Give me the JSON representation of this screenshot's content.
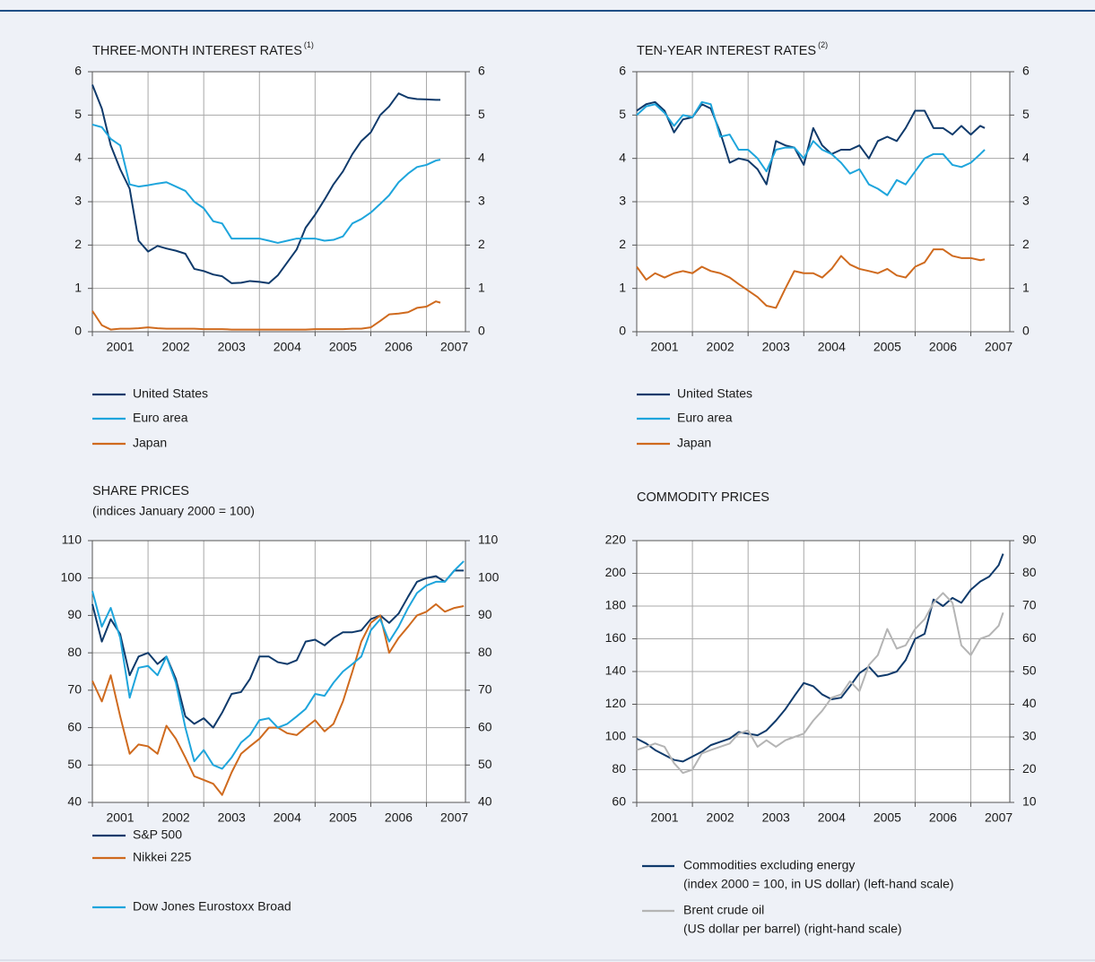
{
  "chart_data": [
    {
      "type": "line",
      "title": "THREE-MONTH INTEREST RATES",
      "title_note": "(1)",
      "x": [
        2001,
        2001.17,
        2001.33,
        2001.5,
        2001.67,
        2001.83,
        2002,
        2002.17,
        2002.33,
        2002.5,
        2002.67,
        2002.83,
        2003,
        2003.17,
        2003.33,
        2003.5,
        2003.67,
        2003.83,
        2004,
        2004.17,
        2004.33,
        2004.5,
        2004.67,
        2004.83,
        2005,
        2005.17,
        2005.33,
        2005.5,
        2005.67,
        2005.83,
        2006,
        2006.17,
        2006.33,
        2006.5,
        2006.67,
        2006.83,
        2007,
        2007.17,
        2007.25
      ],
      "xlim": [
        2001,
        2007.7
      ],
      "xticks": [
        2001,
        2002,
        2003,
        2004,
        2005,
        2006,
        2007
      ],
      "ylim": [
        0,
        6
      ],
      "yticks": [
        0,
        1,
        2,
        3,
        4,
        5,
        6
      ],
      "y2lim": [
        0,
        6
      ],
      "y2ticks": [
        0,
        1,
        2,
        3,
        4,
        5,
        6
      ],
      "grid": true,
      "series": [
        {
          "name": "United States",
          "color": "#0f3a6b",
          "values": [
            5.7,
            5.15,
            4.3,
            3.75,
            3.3,
            2.1,
            1.85,
            1.98,
            1.92,
            1.87,
            1.8,
            1.45,
            1.4,
            1.32,
            1.28,
            1.12,
            1.13,
            1.17,
            1.15,
            1.12,
            1.3,
            1.6,
            1.9,
            2.4,
            2.7,
            3.05,
            3.4,
            3.7,
            4.1,
            4.4,
            4.6,
            5.0,
            5.2,
            5.5,
            5.4,
            5.37,
            5.36,
            5.35,
            5.35
          ]
        },
        {
          "name": "Euro area",
          "color": "#1ea5dc",
          "values": [
            4.78,
            4.72,
            4.45,
            4.3,
            3.4,
            3.35,
            3.38,
            3.42,
            3.45,
            3.35,
            3.25,
            3.0,
            2.85,
            2.55,
            2.5,
            2.15,
            2.15,
            2.15,
            2.15,
            2.1,
            2.05,
            2.1,
            2.15,
            2.15,
            2.15,
            2.1,
            2.12,
            2.2,
            2.5,
            2.6,
            2.75,
            2.95,
            3.15,
            3.45,
            3.65,
            3.8,
            3.85,
            3.95,
            3.97
          ]
        },
        {
          "name": "Japan",
          "color": "#cf6a1e",
          "values": [
            0.48,
            0.15,
            0.05,
            0.07,
            0.07,
            0.08,
            0.1,
            0.08,
            0.07,
            0.07,
            0.07,
            0.07,
            0.06,
            0.06,
            0.06,
            0.05,
            0.05,
            0.05,
            0.05,
            0.05,
            0.05,
            0.05,
            0.05,
            0.05,
            0.06,
            0.06,
            0.06,
            0.06,
            0.07,
            0.07,
            0.1,
            0.25,
            0.4,
            0.42,
            0.45,
            0.55,
            0.58,
            0.7,
            0.67
          ]
        }
      ]
    },
    {
      "type": "line",
      "title": "TEN-YEAR INTEREST RATES",
      "title_note": "(2)",
      "x": [
        2001,
        2001.17,
        2001.33,
        2001.5,
        2001.67,
        2001.83,
        2002,
        2002.17,
        2002.33,
        2002.5,
        2002.67,
        2002.83,
        2003,
        2003.17,
        2003.33,
        2003.5,
        2003.67,
        2003.83,
        2004,
        2004.17,
        2004.33,
        2004.5,
        2004.67,
        2004.83,
        2005,
        2005.17,
        2005.33,
        2005.5,
        2005.67,
        2005.83,
        2006,
        2006.17,
        2006.33,
        2006.5,
        2006.67,
        2006.83,
        2007,
        2007.17,
        2007.25
      ],
      "xlim": [
        2001,
        2007.7
      ],
      "xticks": [
        2001,
        2002,
        2003,
        2004,
        2005,
        2006,
        2007
      ],
      "ylim": [
        0,
        6
      ],
      "yticks": [
        0,
        1,
        2,
        3,
        4,
        5,
        6
      ],
      "y2lim": [
        0,
        6
      ],
      "y2ticks": [
        0,
        1,
        2,
        3,
        4,
        5,
        6
      ],
      "grid": true,
      "series": [
        {
          "name": "United States",
          "color": "#0f3a6b",
          "values": [
            5.1,
            5.25,
            5.3,
            5.1,
            4.6,
            4.9,
            4.95,
            5.25,
            5.15,
            4.6,
            3.9,
            4.0,
            3.95,
            3.75,
            3.4,
            4.4,
            4.3,
            4.25,
            3.85,
            4.7,
            4.3,
            4.1,
            4.2,
            4.2,
            4.3,
            4.0,
            4.4,
            4.5,
            4.4,
            4.7,
            5.1,
            5.1,
            4.7,
            4.7,
            4.55,
            4.75,
            4.55,
            4.75,
            4.7
          ]
        },
        {
          "name": "Euro area",
          "color": "#1ea5dc",
          "values": [
            5.0,
            5.2,
            5.25,
            5.05,
            4.75,
            5.0,
            4.95,
            5.3,
            5.25,
            4.5,
            4.55,
            4.2,
            4.2,
            4.0,
            3.7,
            4.2,
            4.25,
            4.25,
            4.0,
            4.4,
            4.2,
            4.1,
            3.9,
            3.65,
            3.75,
            3.4,
            3.3,
            3.15,
            3.5,
            3.4,
            3.7,
            4.0,
            4.1,
            4.1,
            3.85,
            3.8,
            3.9,
            4.1,
            4.2
          ]
        },
        {
          "name": "Japan",
          "color": "#cf6a1e",
          "values": [
            1.5,
            1.2,
            1.35,
            1.25,
            1.35,
            1.4,
            1.35,
            1.5,
            1.4,
            1.35,
            1.25,
            1.1,
            0.95,
            0.8,
            0.6,
            0.55,
            1.0,
            1.4,
            1.35,
            1.35,
            1.25,
            1.45,
            1.75,
            1.55,
            1.45,
            1.4,
            1.35,
            1.45,
            1.3,
            1.25,
            1.5,
            1.6,
            1.9,
            1.9,
            1.75,
            1.7,
            1.7,
            1.65,
            1.67
          ]
        }
      ]
    },
    {
      "type": "line",
      "title": "SHARE PRICES",
      "subtitle": "(indices January 2000 = 100)",
      "x": [
        2001,
        2001.17,
        2001.33,
        2001.5,
        2001.67,
        2001.83,
        2002,
        2002.17,
        2002.33,
        2002.5,
        2002.67,
        2002.83,
        2003,
        2003.17,
        2003.33,
        2003.5,
        2003.67,
        2003.83,
        2004,
        2004.17,
        2004.33,
        2004.5,
        2004.67,
        2004.83,
        2005,
        2005.17,
        2005.33,
        2005.5,
        2005.67,
        2005.83,
        2006,
        2006.17,
        2006.33,
        2006.5,
        2006.67,
        2006.83,
        2007,
        2007.17,
        2007.33,
        2007.5,
        2007.67
      ],
      "xlim": [
        2001,
        2007.7
      ],
      "xticks": [
        2001,
        2002,
        2003,
        2004,
        2005,
        2006,
        2007
      ],
      "ylim": [
        40,
        110
      ],
      "yticks": [
        40,
        50,
        60,
        70,
        80,
        90,
        100,
        110
      ],
      "y2lim": [
        40,
        110
      ],
      "y2ticks": [
        40,
        50,
        60,
        70,
        80,
        90,
        100,
        110
      ],
      "grid": true,
      "series": [
        {
          "name": "S&P 500",
          "color": "#0f3a6b",
          "values": [
            93,
            83,
            89,
            85,
            74,
            79,
            80,
            77,
            79,
            73,
            63,
            61,
            62.5,
            60,
            64,
            69,
            69.5,
            73,
            79,
            79,
            77.5,
            77,
            78,
            83,
            83.5,
            82,
            84,
            85.5,
            85.5,
            86,
            89,
            90,
            88,
            90.5,
            95,
            99,
            100,
            100.5,
            99,
            102,
            102
          ]
        },
        {
          "name": "Nikkei 225",
          "color": "#cf6a1e",
          "values": [
            72.5,
            67,
            74,
            63,
            53,
            55.5,
            55,
            53,
            60.5,
            57,
            52,
            47,
            46,
            45,
            42,
            48,
            53,
            55,
            57,
            60,
            60,
            58.5,
            58,
            60,
            62,
            59,
            61,
            67,
            75,
            83,
            88,
            90,
            80,
            84,
            87,
            90,
            91,
            93,
            91,
            92,
            92.5
          ]
        },
        {
          "name": "Dow Jones Eurostoxx Broad",
          "color": "#1ea5dc",
          "values": [
            96.5,
            87,
            92,
            84,
            68,
            76,
            76.5,
            74,
            79,
            72,
            60,
            51,
            54,
            50,
            49,
            52,
            56,
            58,
            62,
            62.5,
            60,
            61,
            63,
            65,
            69,
            68.5,
            72,
            75,
            77,
            79,
            86,
            89,
            83,
            87,
            92,
            96,
            98,
            99,
            99,
            102,
            104.5
          ]
        }
      ]
    },
    {
      "type": "line",
      "title": "COMMODITY PRICES",
      "x": [
        2001,
        2001.17,
        2001.33,
        2001.5,
        2001.67,
        2001.83,
        2002,
        2002.17,
        2002.33,
        2002.5,
        2002.67,
        2002.83,
        2003,
        2003.17,
        2003.33,
        2003.5,
        2003.67,
        2003.83,
        2004,
        2004.17,
        2004.33,
        2004.5,
        2004.67,
        2004.83,
        2005,
        2005.17,
        2005.33,
        2005.5,
        2005.67,
        2005.83,
        2006,
        2006.17,
        2006.33,
        2006.5,
        2006.67,
        2006.83,
        2007,
        2007.17,
        2007.33,
        2007.5,
        2007.58
      ],
      "xlim": [
        2001,
        2007.7
      ],
      "xticks": [
        2001,
        2002,
        2003,
        2004,
        2005,
        2006,
        2007
      ],
      "ylim": [
        60,
        220
      ],
      "yticks": [
        60,
        80,
        100,
        120,
        140,
        160,
        180,
        200,
        220
      ],
      "y2lim": [
        10,
        90
      ],
      "y2ticks": [
        10,
        20,
        30,
        40,
        50,
        60,
        70,
        80,
        90
      ],
      "grid": true,
      "series": [
        {
          "name": "Commodities excluding energy",
          "name_note": "(index 2000 = 100, in US dollar) (left-hand scale)",
          "color": "#0f3a6b",
          "values": [
            99,
            96,
            92,
            89,
            86,
            85,
            88,
            91,
            95,
            97,
            99,
            103,
            102,
            101,
            104,
            110,
            117,
            125,
            133,
            131,
            126,
            123,
            124,
            131,
            139,
            143,
            137,
            138,
            140,
            147,
            160,
            163,
            184,
            180,
            185,
            182,
            190,
            195,
            198,
            205,
            212
          ]
        },
        {
          "name": "Brent crude oil",
          "name_note": "(US dollar per barrel) (right-hand scale)",
          "color": "#b4b4b4",
          "axis": "y2",
          "values": [
            26,
            27,
            28,
            27,
            22,
            19,
            20,
            25,
            26,
            27,
            28,
            31,
            32,
            27,
            29,
            27,
            29,
            30,
            31,
            35,
            38,
            42,
            43,
            47,
            44,
            52,
            55,
            63,
            57,
            58,
            63,
            66,
            71,
            74,
            71,
            58,
            55,
            60,
            61,
            64,
            68
          ]
        }
      ]
    }
  ]
}
